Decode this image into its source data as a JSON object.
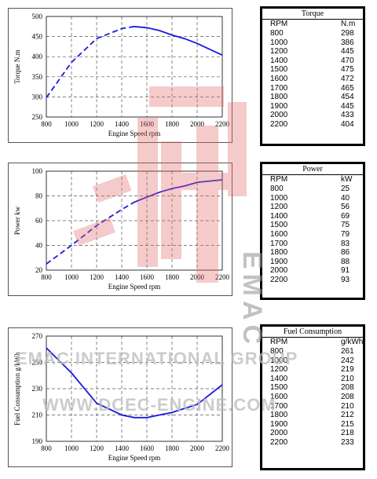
{
  "chart_data": [
    {
      "type": "line",
      "x": [
        800,
        1000,
        1200,
        1400,
        1500,
        1600,
        1700,
        1800,
        1900,
        2000,
        2200
      ],
      "values": [
        298,
        386,
        445,
        470,
        475,
        472,
        465,
        454,
        445,
        433,
        404
      ],
      "dashed_until": 1500,
      "xlabel": "Engine Speed rpm",
      "ylabel": "Torque N.m",
      "xlim": [
        800,
        2200
      ],
      "ylim": [
        250,
        500
      ],
      "xticks": [
        "800",
        "1000",
        "1200",
        "1400",
        "1600",
        "1800",
        "2000",
        "2200"
      ],
      "yticks": [
        "250",
        "300",
        "350",
        "400",
        "450",
        "500"
      ],
      "grid": true
    },
    {
      "type": "line",
      "x": [
        800,
        1000,
        1200,
        1400,
        1500,
        1600,
        1700,
        1800,
        1900,
        2000,
        2200
      ],
      "values": [
        25,
        40,
        56,
        69,
        75,
        79,
        83,
        86,
        88,
        91,
        93
      ],
      "dashed_until": 1500,
      "xlabel": "Engine Speed rpm",
      "ylabel": "Power kw",
      "xlim": [
        800,
        2200
      ],
      "ylim": [
        20,
        100
      ],
      "xticks": [
        "800",
        "1000",
        "1200",
        "1400",
        "1600",
        "1800",
        "2000",
        "2200"
      ],
      "yticks": [
        "20",
        "40",
        "60",
        "80",
        "100"
      ],
      "grid": true
    },
    {
      "type": "line",
      "x": [
        800,
        1000,
        1200,
        1400,
        1500,
        1600,
        1700,
        1800,
        1900,
        2000,
        2200
      ],
      "values": [
        261,
        242,
        219,
        210,
        208,
        208,
        210,
        212,
        215,
        218,
        233
      ],
      "dashed_until": 0,
      "xlabel": "Engine Speed rpm",
      "ylabel": "Fuel Consumption g/kWh",
      "xlim": [
        800,
        2200
      ],
      "ylim": [
        190,
        270
      ],
      "xticks": [
        "800",
        "1000",
        "1200",
        "1400",
        "1600",
        "1800",
        "2000",
        "2200"
      ],
      "yticks": [
        "190",
        "210",
        "230",
        "250",
        "270"
      ],
      "grid": true
    }
  ],
  "tables": [
    {
      "title": "Torque",
      "headers": [
        "RPM",
        "N.m"
      ],
      "rows": [
        [
          "800",
          "298"
        ],
        [
          "1000",
          "386"
        ],
        [
          "1200",
          "445"
        ],
        [
          "1400",
          "470"
        ],
        [
          "1500",
          "475"
        ],
        [
          "1600",
          "472"
        ],
        [
          "1700",
          "465"
        ],
        [
          "1800",
          "454"
        ],
        [
          "1900",
          "445"
        ],
        [
          "2000",
          "433"
        ],
        [
          "2200",
          "404"
        ]
      ]
    },
    {
      "title": "Power",
      "headers": [
        "RPM",
        "kW"
      ],
      "rows": [
        [
          "800",
          "25"
        ],
        [
          "1000",
          "40"
        ],
        [
          "1200",
          "56"
        ],
        [
          "1400",
          "69"
        ],
        [
          "1500",
          "75"
        ],
        [
          "1600",
          "79"
        ],
        [
          "1700",
          "83"
        ],
        [
          "1800",
          "86"
        ],
        [
          "1900",
          "88"
        ],
        [
          "2000",
          "91"
        ],
        [
          "2200",
          "93"
        ]
      ]
    },
    {
      "title": "Fuel Consumption",
      "headers": [
        "RPM",
        "g/kWh"
      ],
      "rows": [
        [
          "800",
          "261"
        ],
        [
          "1000",
          "242"
        ],
        [
          "1200",
          "219"
        ],
        [
          "1400",
          "210"
        ],
        [
          "1500",
          "208"
        ],
        [
          "1600",
          "208"
        ],
        [
          "1700",
          "210"
        ],
        [
          "1800",
          "212"
        ],
        [
          "1900",
          "215"
        ],
        [
          "2000",
          "218"
        ],
        [
          "2200",
          "233"
        ]
      ]
    }
  ],
  "watermarks": {
    "line1": "EMAC INTERNATIONAL GROUP",
    "line2": "WWW.DCEC-ENGINE.COM",
    "vertical": "EMAC"
  },
  "colors": {
    "line": "#1a1adf",
    "watermark_red": "#e46a6a"
  }
}
